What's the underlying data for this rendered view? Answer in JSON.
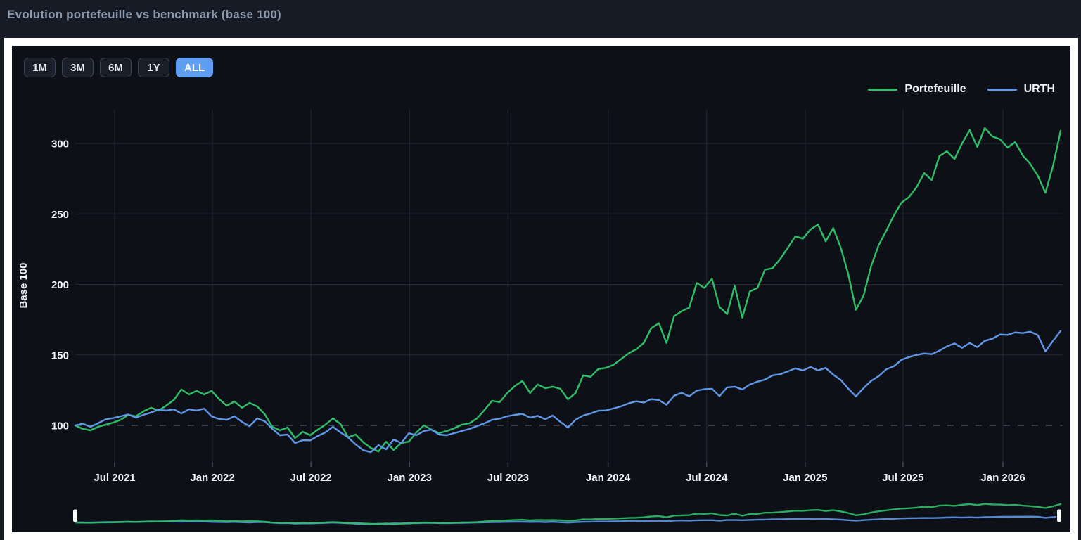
{
  "page": {
    "title": "Evolution portefeuille vs benchmark (base 100)"
  },
  "theme": {
    "page_background": "#161b26",
    "card_frame": "#ffffff",
    "chart_background": "#0d1117",
    "grid_color": "#232936",
    "baseline_color": "#8b93a3",
    "tick_text_color": "#f2f4f7",
    "title_color": "#8d99ad",
    "active_button_color": "#5f9df2",
    "portfolio_color": "#2fbe68",
    "benchmark_color": "#5f97e8",
    "navigator_handle_color": "#ffffff"
  },
  "card": {
    "range_buttons": [
      {
        "label": "1M",
        "active": false
      },
      {
        "label": "3M",
        "active": false
      },
      {
        "label": "6M",
        "active": false
      },
      {
        "label": "1Y",
        "active": false
      },
      {
        "label": "ALL",
        "active": true
      }
    ],
    "legend": [
      {
        "label": "Portefeuille",
        "color": "#2fbe68"
      },
      {
        "label": "URTH",
        "color": "#5f97e8"
      }
    ]
  },
  "chart_data": {
    "type": "line",
    "title": "Evolution portefeuille vs benchmark (base 100)",
    "xlabel": "",
    "ylabel": "Base 100",
    "y_ticks": [
      100,
      150,
      200,
      250,
      300
    ],
    "ylim": [
      74,
      326
    ],
    "grid": true,
    "legend_position": "top-right",
    "baseline": {
      "value": 100,
      "style": "dashed"
    },
    "x_range": [
      "Apr 2021",
      "Apr 2026"
    ],
    "sampling": "biweekly",
    "x_ticks": [
      {
        "label": "Jul 2021",
        "idx": 5.2
      },
      {
        "label": "Jan 2022",
        "idx": 18.1
      },
      {
        "label": "Jul 2022",
        "idx": 31.1
      },
      {
        "label": "Jan 2023",
        "idx": 44.1
      },
      {
        "label": "Jul 2023",
        "idx": 57.1
      },
      {
        "label": "Jan 2024",
        "idx": 70.3
      },
      {
        "label": "Jul 2024",
        "idx": 83.3
      },
      {
        "label": "Jan 2025",
        "idx": 96.3
      },
      {
        "label": "Jul 2025",
        "idx": 109.2
      },
      {
        "label": "Jan 2026",
        "idx": 122.4
      }
    ],
    "series": [
      {
        "name": "Portefeuille",
        "color": "#2fbe68",
        "values": [
          100,
          97.5,
          96.5,
          99,
          100.5,
          102,
          104,
          107.5,
          106.5,
          110,
          112.5,
          110.5,
          114,
          118,
          125.5,
          122,
          124.5,
          122,
          124.5,
          118.5,
          114,
          117,
          112.5,
          116,
          113.5,
          108,
          99,
          96.5,
          98.5,
          91,
          95.5,
          93,
          97,
          100.5,
          105,
          101,
          91.5,
          93.5,
          88,
          84,
          81.5,
          88.5,
          82.5,
          87.5,
          88.5,
          95,
          100,
          97,
          94.5,
          96,
          98,
          100.5,
          101.5,
          105,
          111,
          117.5,
          116.5,
          123,
          128,
          131.5,
          123,
          129,
          126.5,
          127.5,
          126,
          118.5,
          123,
          135.5,
          134.5,
          140,
          140.8,
          143,
          147,
          151,
          154,
          158.5,
          169,
          172.5,
          158.5,
          177.5,
          181,
          183.5,
          201,
          197.5,
          204,
          184,
          179,
          199,
          176.5,
          195,
          197.5,
          210.5,
          211.5,
          218,
          226,
          234,
          232.5,
          239,
          242.5,
          230.5,
          240,
          226,
          207,
          182,
          192,
          213,
          228,
          238,
          249,
          258,
          262,
          269,
          279,
          274,
          291,
          294.5,
          289,
          300,
          309.5,
          297.5,
          311,
          305,
          303,
          297,
          301,
          291.5,
          285.5,
          277,
          265,
          284,
          309
        ]
      },
      {
        "name": "URTH",
        "color": "#5f97e8",
        "values": [
          100,
          101.2,
          99,
          101.5,
          104.3,
          105.2,
          106.5,
          107.8,
          105.5,
          107.5,
          109.2,
          111.2,
          110.5,
          111.4,
          108.5,
          111.4,
          110.5,
          111.9,
          106.4,
          104.5,
          104,
          106.5,
          102.5,
          99.4,
          105,
          103,
          97.5,
          93,
          93.5,
          87.5,
          89.5,
          89.4,
          92.5,
          95,
          99,
          95,
          91.5,
          86.5,
          82.4,
          81,
          86,
          83,
          90,
          87.5,
          94.4,
          93,
          96,
          97,
          93.5,
          93,
          94.5,
          96,
          97.5,
          99.5,
          101.5,
          104,
          104.8,
          106.5,
          107.5,
          108.2,
          105.5,
          106.8,
          104.4,
          107,
          102.5,
          98.5,
          104,
          107,
          108.5,
          110.4,
          110.6,
          112,
          113.5,
          115.6,
          117.1,
          116.2,
          118.6,
          118,
          114.6,
          121,
          123.2,
          120.6,
          124.7,
          125.7,
          126,
          120.8,
          127,
          127.5,
          125.5,
          129,
          131,
          132.5,
          135.5,
          136.3,
          138.3,
          140.5,
          139,
          141.5,
          139,
          140.8,
          136,
          132.2,
          126,
          120.6,
          126.5,
          131.5,
          135,
          139.8,
          142,
          146.5,
          148.5,
          150,
          151,
          150.5,
          153,
          156,
          158.2,
          155,
          158.5,
          155.5,
          160,
          161.5,
          164.5,
          164.2,
          166,
          165.5,
          166.5,
          164,
          152.5,
          160,
          167
        ]
      }
    ]
  },
  "navigator": {
    "handle_color": "#ffffff",
    "range": "full"
  }
}
